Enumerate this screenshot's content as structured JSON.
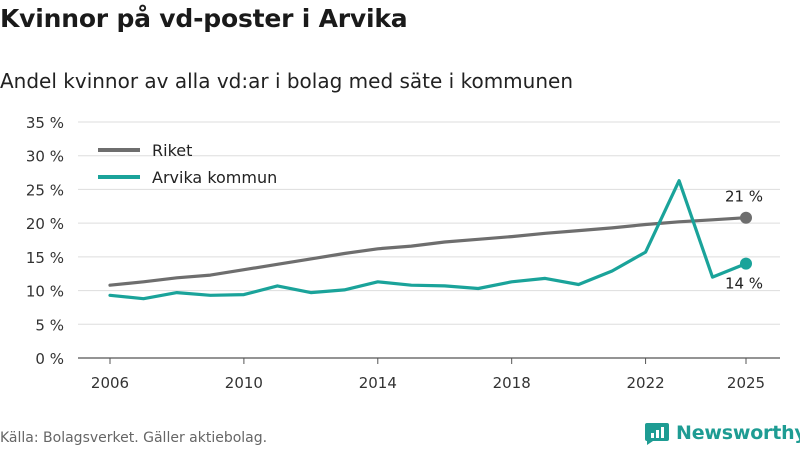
{
  "header": {
    "title": "Kvinnor på vd-poster i Arvika",
    "subtitle": "Andel kvinnor av alla vd:ar i bolag med säte i kommunen"
  },
  "footer": {
    "source": "Källa: Bolagsverket. Gäller aktiebolag.",
    "brand": "Newsworthy"
  },
  "colors": {
    "riket": "#6e6e6e",
    "arvika": "#1aa39a",
    "grid": "#dddddd",
    "brand": "#1e9c93"
  },
  "chart_data": {
    "type": "line",
    "title": "Kvinnor på vd-poster i Arvika",
    "subtitle": "Andel kvinnor av alla vd:ar i bolag med säte i kommunen",
    "xlabel": "",
    "ylabel": "",
    "xlim": [
      2006,
      2025
    ],
    "ylim": [
      0,
      35
    ],
    "yticks": [
      0,
      5,
      10,
      15,
      20,
      25,
      30,
      35
    ],
    "ytick_labels": [
      "0 %",
      "5 %",
      "10 %",
      "15 %",
      "20 %",
      "25 %",
      "30 %",
      "35 %"
    ],
    "xticks": [
      2006,
      2010,
      2014,
      2018,
      2022,
      2025
    ],
    "xtick_labels": [
      "2006",
      "2010",
      "2014",
      "2018",
      "2022",
      "2025"
    ],
    "grid": true,
    "legend_position": "top-left",
    "x": [
      2006,
      2007,
      2008,
      2009,
      2010,
      2011,
      2012,
      2013,
      2014,
      2015,
      2016,
      2017,
      2018,
      2019,
      2020,
      2021,
      2022,
      2023,
      2024,
      2025
    ],
    "series": [
      {
        "name": "Riket",
        "color": "#6e6e6e",
        "values": [
          10.8,
          11.3,
          11.9,
          12.3,
          13.1,
          13.9,
          14.7,
          15.5,
          16.2,
          16.6,
          17.2,
          17.6,
          18.0,
          18.5,
          18.9,
          19.3,
          19.8,
          20.2,
          20.5,
          20.8
        ],
        "end_label": "21 %"
      },
      {
        "name": "Arvika kommun",
        "color": "#1aa39a",
        "values": [
          9.3,
          8.8,
          9.7,
          9.3,
          9.4,
          10.7,
          9.7,
          10.1,
          11.3,
          10.8,
          10.7,
          10.3,
          11.3,
          11.8,
          10.9,
          12.9,
          15.7,
          26.3,
          12.0,
          14.0
        ],
        "end_label": "14 %"
      }
    ]
  }
}
